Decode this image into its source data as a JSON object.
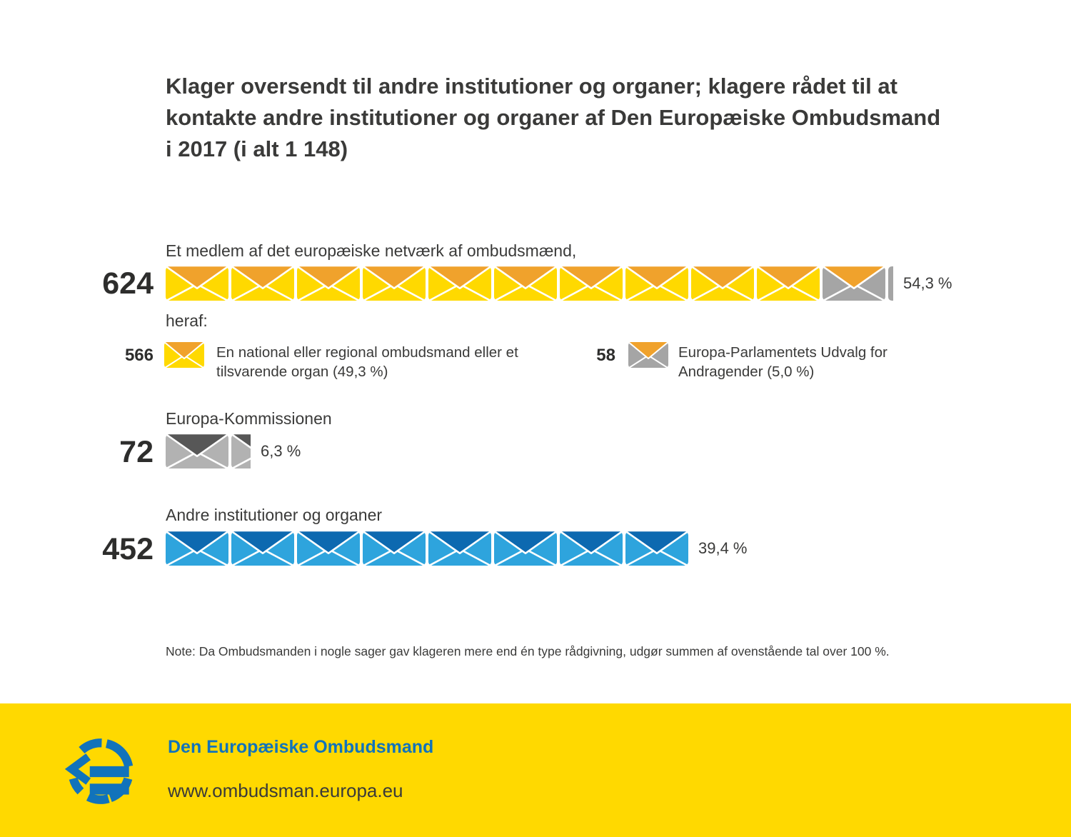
{
  "title": "Klager oversendt til andre institutioner og organer; klagere rådet til at kontakte andre institutioner og organer af Den Europæiske Ombudsmand i 2017 (i alt 1 148)",
  "title_lines": [
    "Klager oversendt til andre institutioner og organer; klagere rådet til at",
    "kontakte andre institutioner og organer af Den Europæiske Ombudsmand",
    "i 2017 (i alt 1 148)"
  ],
  "note": "Note: Da Ombudsmanden i nogle sager gav klageren mere end én type rådgivning, udgør summen af ovenstående tal over 100 %.",
  "footer": {
    "organization": "Den Europæiske Ombudsmand",
    "website": "www.ombudsman.europa.eu",
    "logo": "european-ombudsman-logo"
  },
  "colors": {
    "envelope_yellow": "#FFD900",
    "envelope_orange_flap": "#F0A22C",
    "envelope_gray": "#A5A5A5",
    "envelope_gray_light": "#B2B2B2",
    "envelope_dark_gray_flap": "#575757",
    "envelope_light_blue": "#2EA4DD",
    "envelope_dark_blue_flap": "#0D69B0",
    "footer_yellow": "#FFD900",
    "brand_blue": "#1173BB",
    "text_dark": "#3A3A39"
  },
  "chart_data": {
    "type": "bar",
    "subtype": "pictogram",
    "icon": "envelope",
    "title": "Klager oversendt til andre institutioner og organer; klagere rådet til at kontakte andre institutioner og organer af Den Europæiske Ombudsmand i 2017 (i alt 1 148)",
    "total": 1148,
    "rows": [
      {
        "label": "Et medlem af det europæiske netværk af ombudsmænd,",
        "value": 624,
        "percent": "54,3 %",
        "segments": [
          {
            "type": "full",
            "count": 10,
            "body": "#FFD900",
            "flap": "#F0A22C"
          },
          {
            "type": "full",
            "count": 1,
            "body": "#A5A5A5",
            "flap": "#F0A22C"
          },
          {
            "type": "sliver",
            "count": 1,
            "body": "#A5A5A5"
          }
        ],
        "subheading": "heraf:",
        "breakdown": [
          {
            "value": 566,
            "label": "En national eller regional ombudsmand eller et tilsvarende organ (49,3 %)",
            "segments": [
              {
                "type": "full",
                "count": 1,
                "body": "#FFD900",
                "flap": "#F0A22C"
              }
            ]
          },
          {
            "value": 58,
            "label": "Europa-Parlamentets Udvalg for Andragender (5,0 %)",
            "segments": [
              {
                "type": "full",
                "count": 1,
                "body": "#A5A5A5",
                "flap": "#F0A22C"
              }
            ]
          }
        ]
      },
      {
        "label": "Europa-Kommissionen",
        "value": 72,
        "percent": "6,3 %",
        "segments": [
          {
            "type": "full",
            "count": 1,
            "body": "#B2B2B2",
            "flap": "#575757"
          },
          {
            "type": "partial",
            "count": 1,
            "width": 27,
            "body": "#B2B2B2",
            "flap": "#575757"
          }
        ]
      },
      {
        "label": "Andre institutioner og organer",
        "value": 452,
        "percent": "39,4 %",
        "segments": [
          {
            "type": "full",
            "count": 8,
            "body": "#2EA4DD",
            "flap": "#0D69B0"
          }
        ]
      }
    ]
  }
}
